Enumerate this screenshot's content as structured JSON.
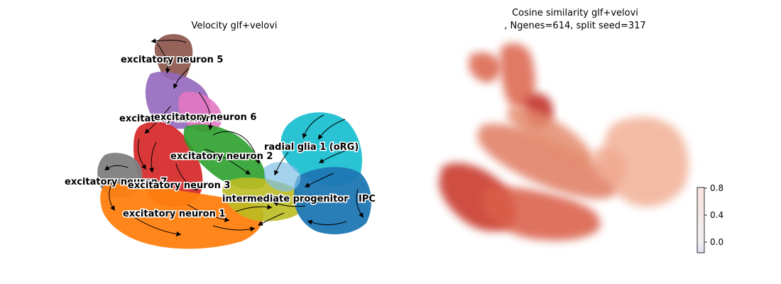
{
  "chart_data": [
    {
      "type": "scatter",
      "title": "Velocity glf+velovi",
      "embedding": "UMAP with velocity streamlines",
      "axes_visible": false,
      "grid": false,
      "clusters": [
        {
          "name": "excitatory neuron 5",
          "color": "#8c564b"
        },
        {
          "name": "excitatory neuron 6",
          "color": "#9467bd"
        },
        {
          "name": "excitatory neuron 6",
          "color": "#e377c2"
        },
        {
          "name": "excitatory neuron 2",
          "color": "#2ca02c"
        },
        {
          "name": "radial glia 1 (oRG)",
          "color": "#17becf"
        },
        {
          "name": "excitatory neuron 7",
          "color": "#7f7f7f"
        },
        {
          "name": "excitatory neuron 3",
          "color": "#d62728"
        },
        {
          "name": "intermediate progenitor",
          "color": "#bcbd22"
        },
        {
          "name": "IPC",
          "color": "#1f77b4"
        },
        {
          "name": "excitatory neuron 1",
          "color": "#ff7f0e"
        }
      ]
    },
    {
      "type": "scatter",
      "title_line1": "Cosine similarity glf+velovi",
      "title_line2": ", Ngenes=614, split seed=317",
      "axes_visible": false,
      "grid": false,
      "colorbar": {
        "colormap": "coolwarm",
        "range": [
          -0.15,
          0.8
        ],
        "ticks": [
          0.0,
          0.4,
          0.8
        ],
        "tick_labels": [
          "0.0",
          "0.4",
          "0.8"
        ]
      }
    }
  ]
}
